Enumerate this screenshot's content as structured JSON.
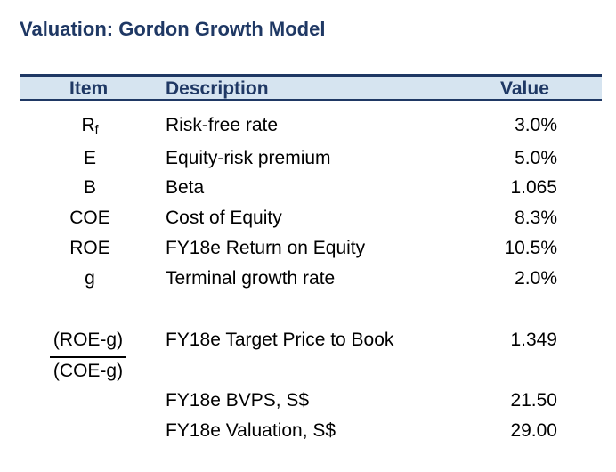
{
  "title": "Valuation: Gordon Growth Model",
  "header": {
    "item": "Item",
    "description": "Description",
    "value": "Value"
  },
  "rows": [
    {
      "item": "R",
      "item_sub": "f",
      "description": "Risk-free rate",
      "value": "3.0%"
    },
    {
      "item": "E",
      "description": "Equity-risk premium",
      "value": "5.0%"
    },
    {
      "item": "B",
      "description": "Beta",
      "value": "1.065"
    },
    {
      "item": "COE",
      "description": "Cost of Equity",
      "value": "8.3%"
    },
    {
      "item": "ROE",
      "description": "FY18e Return on Equity",
      "value": "10.5%"
    },
    {
      "item": "g",
      "description": "Terminal growth rate",
      "value": "2.0%"
    }
  ],
  "ptb": {
    "numerator": "(ROE-g)",
    "denominator": "(COE-g)",
    "description": "FY18e Target Price to Book",
    "value": "1.349"
  },
  "bottom_rows": [
    {
      "description": "FY18e BVPS, S$",
      "value": "21.50"
    },
    {
      "description": "FY18e Valuation, S$",
      "value": "29.00"
    }
  ],
  "colors": {
    "accent": "#1f3864",
    "header_bg": "#d6e4f0"
  }
}
